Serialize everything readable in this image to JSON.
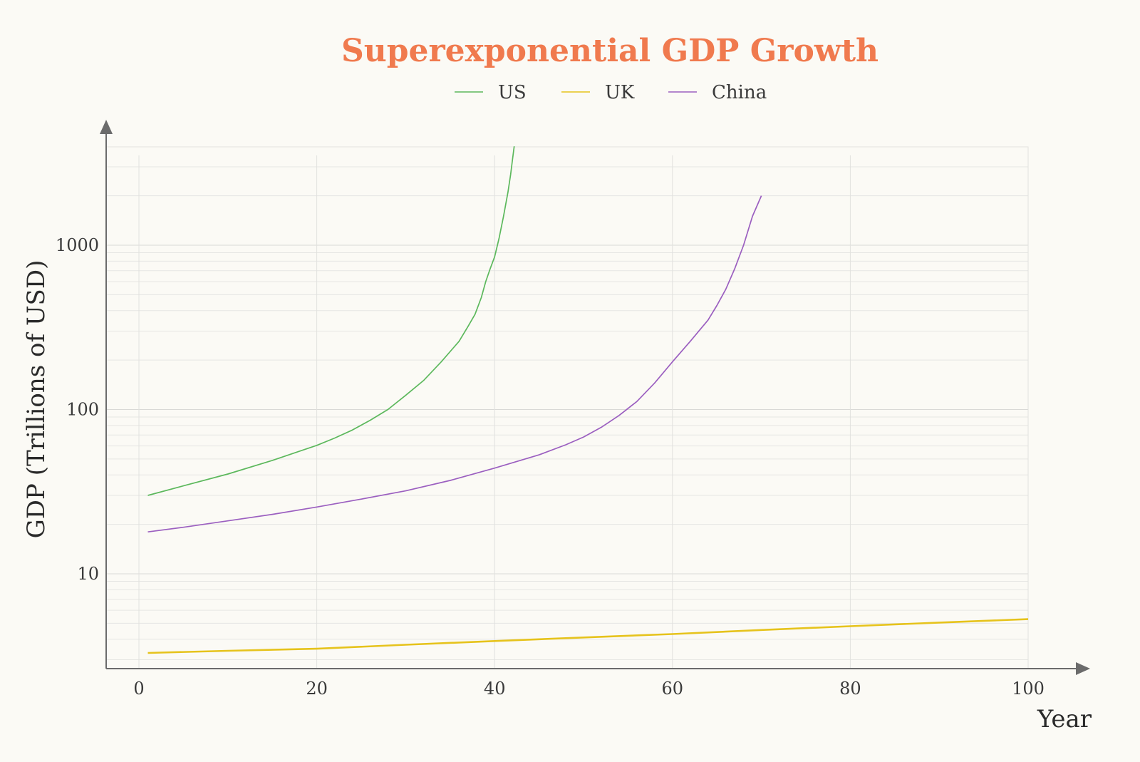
{
  "chart_data": {
    "type": "line",
    "title": "Superexponential GDP Growth",
    "xlabel": "Year",
    "ylabel": "GDP (Trillions of USD)",
    "xlim": [
      -4,
      100
    ],
    "ylim": [
      2.6,
      4200
    ],
    "yscale": "log",
    "grid": true,
    "legend_position": "top-center",
    "xticks": [
      0,
      20,
      40,
      60,
      80,
      100
    ],
    "yticks": [
      10,
      100,
      1000
    ],
    "series": [
      {
        "name": "US",
        "color": "#5cb85c",
        "points": [
          [
            1,
            30
          ],
          [
            5,
            34.3
          ],
          [
            10,
            40.5
          ],
          [
            15,
            49
          ],
          [
            20,
            60.5
          ],
          [
            22,
            67
          ],
          [
            24,
            75
          ],
          [
            26,
            86
          ],
          [
            28,
            100
          ],
          [
            30,
            122
          ],
          [
            32,
            150
          ],
          [
            34,
            195
          ],
          [
            36,
            260
          ],
          [
            37,
            320
          ],
          [
            37.8,
            380
          ],
          [
            38.5,
            480
          ],
          [
            39,
            600
          ],
          [
            39.5,
            720
          ],
          [
            40,
            850
          ],
          [
            40.5,
            1100
          ],
          [
            41,
            1500
          ],
          [
            41.5,
            2100
          ],
          [
            41.8,
            2700
          ],
          [
            42,
            3300
          ],
          [
            42.2,
            4000
          ]
        ]
      },
      {
        "name": "UK",
        "color": "#e6c31c",
        "points": [
          [
            1,
            3.3
          ],
          [
            10,
            3.4
          ],
          [
            20,
            3.5
          ],
          [
            30,
            3.7
          ],
          [
            40,
            3.9
          ],
          [
            50,
            4.1
          ],
          [
            60,
            4.3
          ],
          [
            70,
            4.55
          ],
          [
            80,
            4.8
          ],
          [
            90,
            5.05
          ],
          [
            100,
            5.3
          ]
        ]
      },
      {
        "name": "China",
        "color": "#9b5fc0",
        "points": [
          [
            1,
            18
          ],
          [
            5,
            19.2
          ],
          [
            10,
            21
          ],
          [
            15,
            23
          ],
          [
            20,
            25.5
          ],
          [
            25,
            28.5
          ],
          [
            30,
            32
          ],
          [
            35,
            37
          ],
          [
            40,
            44
          ],
          [
            45,
            53
          ],
          [
            48,
            61
          ],
          [
            50,
            68
          ],
          [
            52,
            78
          ],
          [
            54,
            92
          ],
          [
            56,
            112
          ],
          [
            58,
            145
          ],
          [
            60,
            195
          ],
          [
            62,
            260
          ],
          [
            64,
            350
          ],
          [
            65,
            430
          ],
          [
            66,
            540
          ],
          [
            67,
            720
          ],
          [
            68,
            1000
          ],
          [
            69,
            1500
          ],
          [
            70,
            2000
          ]
        ]
      }
    ]
  }
}
